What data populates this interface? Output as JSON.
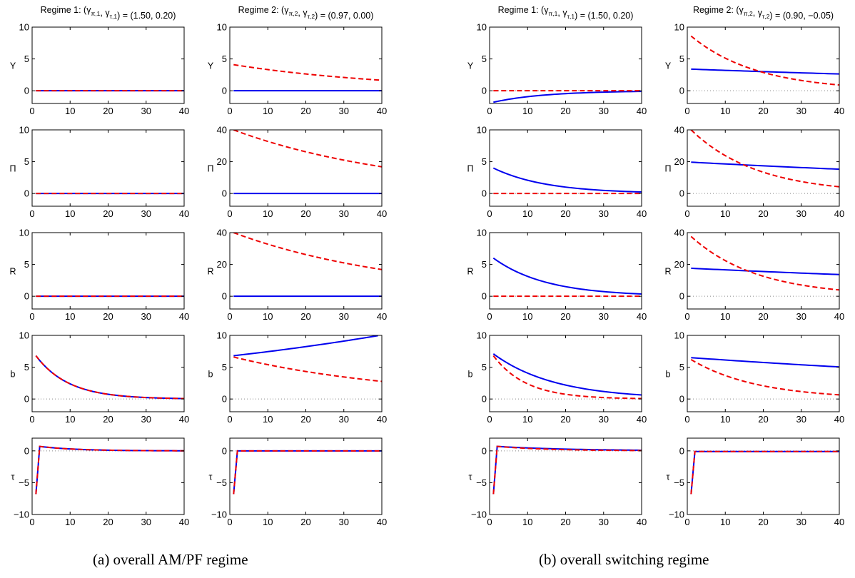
{
  "figure": {
    "captions": {
      "a": "(a) overall AM/PF regime",
      "b": "(b) overall switching regime"
    }
  },
  "colors": {
    "solid": "#0000ee",
    "dashed": "#ee0000",
    "zero_line": "#888888"
  },
  "chart_data": [
    {
      "type": "line",
      "panel": "a",
      "column": 1,
      "title": {
        "prefix": "Regime 1: (",
        "sym1": "γ",
        "sub1": "π,1",
        "sym2": "γ",
        "sub2": "τ,1",
        "suffix": ") = (1.50, 0.20)"
      },
      "x": {
        "range": [
          0,
          40
        ],
        "ticks": [
          0,
          10,
          20,
          30,
          40
        ]
      },
      "rows": [
        {
          "ylabel": "Y",
          "ylim": [
            -2,
            10
          ],
          "yticks": [
            0,
            5,
            10
          ],
          "zero_line": true,
          "series": [
            {
              "style": "solid",
              "fn": "decay",
              "start": 0,
              "ratio": 1,
              "end_x": 40
            },
            {
              "style": "dashed",
              "fn": "decay",
              "start": 0,
              "ratio": 1,
              "end_x": 40
            }
          ]
        },
        {
          "ylabel": "Π",
          "ylim": [
            -2,
            10
          ],
          "yticks": [
            0,
            5,
            10
          ],
          "zero_line": true,
          "series": [
            {
              "style": "solid",
              "fn": "decay",
              "start": 0,
              "ratio": 1,
              "end_x": 40
            },
            {
              "style": "dashed",
              "fn": "decay",
              "start": 0,
              "ratio": 1,
              "end_x": 40
            }
          ]
        },
        {
          "ylabel": "R",
          "ylim": [
            -2,
            10
          ],
          "yticks": [
            0,
            5,
            10
          ],
          "zero_line": true,
          "series": [
            {
              "style": "solid",
              "fn": "decay",
              "start": 0,
              "ratio": 1,
              "end_x": 40
            },
            {
              "style": "dashed",
              "fn": "decay",
              "start": 0,
              "ratio": 1,
              "end_x": 40
            }
          ]
        },
        {
          "ylabel": "b",
          "ylim": [
            -2,
            10
          ],
          "yticks": [
            0,
            5,
            10
          ],
          "zero_line": true,
          "series": [
            {
              "style": "solid",
              "fn": "decay",
              "start": 6.8,
              "ratio": 0.89,
              "end_x": 40
            },
            {
              "style": "dashed",
              "fn": "decay",
              "start": 6.8,
              "ratio": 0.89,
              "end_x": 40
            }
          ]
        },
        {
          "ylabel": "τ",
          "ylim": [
            -10,
            2
          ],
          "yticks": [
            -10,
            -5,
            0
          ],
          "zero_line": true,
          "series": [
            {
              "style": "solid",
              "fn": "spike",
              "start": -6.8,
              "peak": 0.7,
              "ratio": 0.9,
              "end_x": 40
            },
            {
              "style": "dashed",
              "fn": "spike",
              "start": -6.8,
              "peak": 0.7,
              "ratio": 0.9,
              "end_x": 40
            }
          ]
        }
      ]
    },
    {
      "type": "line",
      "panel": "a",
      "column": 2,
      "title": {
        "prefix": "Regime 2: (",
        "sym1": "γ",
        "sub1": "π,2",
        "sym2": "γ",
        "sub2": "τ,2",
        "suffix": ") = (0.97, 0.00)"
      },
      "x": {
        "range": [
          0,
          40
        ],
        "ticks": [
          0,
          10,
          20,
          30,
          40
        ]
      },
      "rows": [
        {
          "ylabel": "Y",
          "ylim": [
            -2,
            10
          ],
          "yticks": [
            0,
            5,
            10
          ],
          "zero_line": true,
          "series": [
            {
              "style": "solid",
              "fn": "decay",
              "start": 0,
              "ratio": 1,
              "end_x": 40
            },
            {
              "style": "dashed",
              "fn": "decay",
              "start": 4.1,
              "ratio": 0.977,
              "end_x": 40
            }
          ]
        },
        {
          "ylabel": "Π",
          "ylim": [
            -8,
            40
          ],
          "yticks": [
            0,
            20,
            40
          ],
          "zero_line": true,
          "series": [
            {
              "style": "solid",
              "fn": "decay",
              "start": 0,
              "ratio": 1,
              "end_x": 40
            },
            {
              "style": "dashed",
              "fn": "decay",
              "start": 40,
              "ratio": 0.978,
              "end_x": 40
            }
          ]
        },
        {
          "ylabel": "R",
          "ylim": [
            -8,
            40
          ],
          "yticks": [
            0,
            20,
            40
          ],
          "zero_line": true,
          "series": [
            {
              "style": "solid",
              "fn": "decay",
              "start": 0,
              "ratio": 1,
              "end_x": 40
            },
            {
              "style": "dashed",
              "fn": "decay",
              "start": 40,
              "ratio": 0.978,
              "end_x": 40
            }
          ]
        },
        {
          "ylabel": "b",
          "ylim": [
            -2,
            10
          ],
          "yticks": [
            0,
            5,
            10
          ],
          "zero_line": true,
          "series": [
            {
              "style": "solid",
              "fn": "decay",
              "start": 6.8,
              "ratio": 1.0101,
              "end_x": 39
            },
            {
              "style": "dashed",
              "fn": "decay",
              "start": 6.6,
              "ratio": 0.978,
              "end_x": 40
            }
          ]
        },
        {
          "ylabel": "τ",
          "ylim": [
            -10,
            2
          ],
          "yticks": [
            -10,
            -5,
            0
          ],
          "zero_line": true,
          "series": [
            {
              "style": "solid",
              "fn": "spike",
              "start": -6.8,
              "peak": 0,
              "ratio": 1,
              "end_x": 40
            },
            {
              "style": "dashed",
              "fn": "spike",
              "start": -6.8,
              "peak": 0,
              "ratio": 1,
              "end_x": 40
            }
          ]
        }
      ]
    },
    {
      "type": "line",
      "panel": "b",
      "column": 1,
      "title": {
        "prefix": "Regime 1: (",
        "sym1": "γ",
        "sub1": "π,1",
        "sym2": "γ",
        "sub2": "τ,1",
        "suffix": ") = (1.50, 0.20)"
      },
      "x": {
        "range": [
          0,
          40
        ],
        "ticks": [
          0,
          10,
          20,
          30,
          40
        ]
      },
      "rows": [
        {
          "ylabel": "Y",
          "ylim": [
            -2,
            10
          ],
          "yticks": [
            0,
            5,
            10
          ],
          "zero_line": true,
          "series": [
            {
              "style": "solid",
              "fn": "decay",
              "start": -1.8,
              "ratio": 0.93,
              "end_x": 40
            },
            {
              "style": "dashed",
              "fn": "decay",
              "start": 0,
              "ratio": 1,
              "end_x": 40
            }
          ]
        },
        {
          "ylabel": "Π",
          "ylim": [
            -2,
            10
          ],
          "yticks": [
            0,
            5,
            10
          ],
          "zero_line": true,
          "series": [
            {
              "style": "solid",
              "fn": "decay",
              "start": 4.0,
              "ratio": 0.93,
              "end_x": 40
            },
            {
              "style": "dashed",
              "fn": "decay",
              "start": 0,
              "ratio": 1,
              "end_x": 40
            }
          ]
        },
        {
          "ylabel": "R",
          "ylim": [
            -2,
            10
          ],
          "yticks": [
            0,
            5,
            10
          ],
          "zero_line": true,
          "series": [
            {
              "style": "solid",
              "fn": "decay",
              "start": 6.0,
              "ratio": 0.93,
              "end_x": 40
            },
            {
              "style": "dashed",
              "fn": "decay",
              "start": 0,
              "ratio": 1,
              "end_x": 40
            }
          ]
        },
        {
          "ylabel": "b",
          "ylim": [
            -2,
            10
          ],
          "yticks": [
            0,
            5,
            10
          ],
          "zero_line": true,
          "series": [
            {
              "style": "solid",
              "fn": "decay",
              "start": 7.1,
              "ratio": 0.94,
              "end_x": 40
            },
            {
              "style": "dashed",
              "fn": "decay",
              "start": 6.8,
              "ratio": 0.89,
              "end_x": 40
            }
          ]
        },
        {
          "ylabel": "τ",
          "ylim": [
            -10,
            2
          ],
          "yticks": [
            -10,
            -5,
            0
          ],
          "zero_line": true,
          "series": [
            {
              "style": "solid",
              "fn": "spike",
              "start": -6.8,
              "peak": 0.7,
              "ratio": 0.95,
              "end_x": 40
            },
            {
              "style": "dashed",
              "fn": "spike",
              "start": -6.8,
              "peak": 0.7,
              "ratio": 0.93,
              "end_x": 40
            }
          ]
        }
      ]
    },
    {
      "type": "line",
      "panel": "b",
      "column": 2,
      "title": {
        "prefix": "Regime 2: (",
        "sym1": "γ",
        "sub1": "π,2",
        "sym2": "γ",
        "sub2": "τ,2",
        "suffix": ") = (0.90, −0.05)"
      },
      "x": {
        "range": [
          0,
          40
        ],
        "ticks": [
          0,
          10,
          20,
          30,
          40
        ]
      },
      "rows": [
        {
          "ylabel": "Y",
          "ylim": [
            -2,
            10
          ],
          "yticks": [
            0,
            5,
            10
          ],
          "zero_line": true,
          "series": [
            {
              "style": "solid",
              "fn": "decay",
              "start": 3.4,
              "ratio": 0.9935,
              "end_x": 40
            },
            {
              "style": "dashed",
              "fn": "decay",
              "start": 8.6,
              "ratio": 0.944,
              "end_x": 40
            }
          ]
        },
        {
          "ylabel": "Π",
          "ylim": [
            -8,
            40
          ],
          "yticks": [
            0,
            20,
            40
          ],
          "zero_line": true,
          "series": [
            {
              "style": "solid",
              "fn": "decay",
              "start": 19.7,
              "ratio": 0.9935,
              "end_x": 40
            },
            {
              "style": "dashed",
              "fn": "decay",
              "start": 40,
              "ratio": 0.944,
              "end_x": 40
            }
          ]
        },
        {
          "ylabel": "R",
          "ylim": [
            -8,
            40
          ],
          "yticks": [
            0,
            20,
            40
          ],
          "zero_line": true,
          "series": [
            {
              "style": "solid",
              "fn": "decay",
              "start": 17.6,
              "ratio": 0.9935,
              "end_x": 40
            },
            {
              "style": "dashed",
              "fn": "decay",
              "start": 37.6,
              "ratio": 0.944,
              "end_x": 40
            }
          ]
        },
        {
          "ylabel": "b",
          "ylim": [
            -2,
            10
          ],
          "yticks": [
            0,
            5,
            10
          ],
          "zero_line": true,
          "series": [
            {
              "style": "solid",
              "fn": "decay",
              "start": 6.5,
              "ratio": 0.9935,
              "end_x": 40
            },
            {
              "style": "dashed",
              "fn": "decay",
              "start": 6.2,
              "ratio": 0.944,
              "end_x": 40
            }
          ]
        },
        {
          "ylabel": "τ",
          "ylim": [
            -10,
            2
          ],
          "yticks": [
            -10,
            -5,
            0
          ],
          "zero_line": true,
          "series": [
            {
              "style": "solid",
              "fn": "spike",
              "start": -6.8,
              "peak": -0.1,
              "ratio": 1,
              "end_x": 40
            },
            {
              "style": "dashed",
              "fn": "spike",
              "start": -6.8,
              "peak": -0.1,
              "ratio": 1,
              "end_x": 40
            }
          ]
        }
      ]
    }
  ]
}
